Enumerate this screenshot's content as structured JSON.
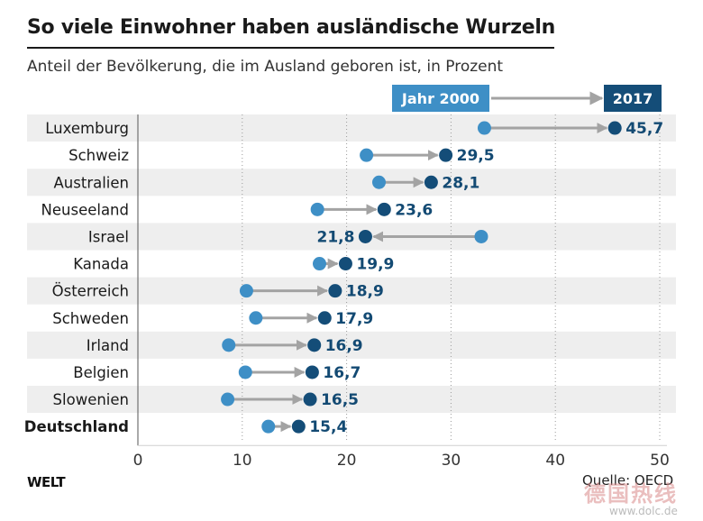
{
  "title": "So viele Einwohner haben ausländische Wurzeln",
  "subtitle": "Anteil der Bevölkerung, die im Ausland geboren ist, in Prozent",
  "brand": "WELT",
  "source": "Quelle: OECD",
  "watermark": "德国热线",
  "watermark_url": "www.dolc.de",
  "colors": {
    "start": "#3e8fc6",
    "end": "#144d78",
    "arrow": "#a3a3a3",
    "band": "#eeeeee",
    "label": "#134a73"
  },
  "chart_data": {
    "type": "dumbbell",
    "title": "So viele Einwohner haben ausländische Wurzeln",
    "subtitle": "Anteil der Bevölkerung, die im Ausland geboren ist, in Prozent",
    "legend": [
      "Jahr 2000",
      "2017"
    ],
    "xlim": [
      0,
      50
    ],
    "xticks": [
      0,
      10,
      20,
      30,
      40,
      50
    ],
    "grid": true,
    "categories": [
      "Luxemburg",
      "Schweiz",
      "Australien",
      "Neuseeland",
      "Israel",
      "Kanada",
      "Österreich",
      "Schweden",
      "Irland",
      "Belgien",
      "Slowenien",
      "Deutschland"
    ],
    "highlight": "Deutschland",
    "series": [
      {
        "name": "Jahr 2000",
        "values": [
          33.2,
          21.9,
          23.1,
          17.2,
          32.9,
          17.4,
          10.4,
          11.3,
          8.7,
          10.3,
          8.6,
          12.5
        ]
      },
      {
        "name": "2017",
        "values": [
          45.7,
          29.5,
          28.1,
          23.6,
          21.8,
          19.9,
          18.9,
          17.9,
          16.9,
          16.7,
          16.5,
          15.4
        ]
      }
    ],
    "value_labels": [
      "45,7",
      "29,5",
      "28,1",
      "23,6",
      "21,8",
      "19,9",
      "18,9",
      "17,9",
      "16,9",
      "16,7",
      "16,5",
      "15,4"
    ]
  }
}
